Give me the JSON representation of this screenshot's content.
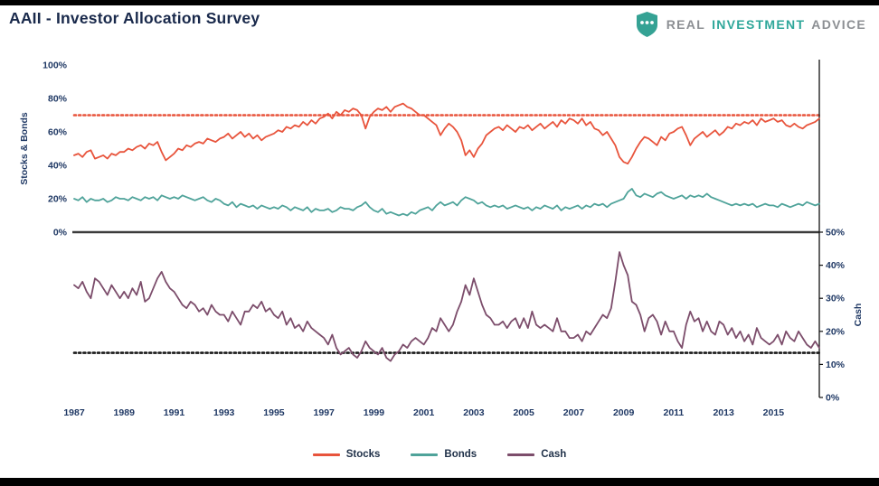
{
  "header": {
    "title": "AAII - Investor Allocation Survey",
    "logo": {
      "icon": "shield-dots-icon",
      "words": [
        "REAL",
        "INVESTMENT",
        "ADVICE"
      ],
      "teal": "#2FA79A",
      "gray": "#8C8F93"
    }
  },
  "chart_data": {
    "type": "line",
    "title": "AAII - Investor Allocation Survey",
    "x_start": 1987,
    "points_per_year": 6,
    "x_tick_labels": [
      "1987",
      "1989",
      "1991",
      "1993",
      "1995",
      "1997",
      "1999",
      "2001",
      "2003",
      "2005",
      "2007",
      "2009",
      "2011",
      "2013",
      "2015"
    ],
    "panels": [
      {
        "name": "stocks_bonds",
        "side": "left",
        "ylabel": "Stocks & Bonds",
        "ylim": [
          0,
          100
        ],
        "yticks": [
          "100%",
          "80%",
          "60%",
          "40%",
          "20%",
          "0%"
        ]
      },
      {
        "name": "cash",
        "side": "right",
        "ylabel": "Cash",
        "ylim": [
          0,
          50
        ],
        "yticks": [
          "50%",
          "40%",
          "30%",
          "20%",
          "10%",
          "0%"
        ]
      }
    ],
    "grid": false,
    "legend_position": "bottom",
    "axis_text_color": "#1F3864",
    "series": [
      {
        "name": "Stocks",
        "panel": "stocks_bonds",
        "color": "#E8543C",
        "values": [
          46,
          47,
          45,
          48,
          49,
          44,
          45,
          46,
          44,
          47,
          46,
          48,
          48,
          50,
          49,
          51,
          52,
          50,
          53,
          52,
          54,
          48,
          43,
          45,
          47,
          50,
          49,
          52,
          51,
          53,
          54,
          53,
          56,
          55,
          54,
          56,
          57,
          59,
          56,
          58,
          60,
          57,
          59,
          56,
          58,
          55,
          57,
          58,
          59,
          61,
          60,
          63,
          62,
          64,
          63,
          66,
          64,
          67,
          65,
          68,
          69,
          71,
          68,
          72,
          70,
          73,
          72,
          74,
          73,
          70,
          62,
          69,
          72,
          74,
          73,
          75,
          72,
          75,
          76,
          77,
          75,
          74,
          72,
          70,
          70,
          68,
          66,
          64,
          58,
          62,
          65,
          63,
          60,
          55,
          46,
          49,
          45,
          50,
          53,
          58,
          60,
          62,
          63,
          61,
          64,
          62,
          60,
          63,
          62,
          64,
          61,
          63,
          65,
          62,
          64,
          66,
          63,
          67,
          65,
          68,
          67,
          65,
          68,
          64,
          66,
          62,
          61,
          58,
          60,
          56,
          52,
          45,
          42,
          41,
          45,
          50,
          54,
          57,
          56,
          54,
          52,
          57,
          55,
          59,
          60,
          62,
          63,
          58,
          52,
          56,
          58,
          60,
          57,
          59,
          61,
          58,
          60,
          63,
          62,
          65,
          64,
          66,
          65,
          67,
          64,
          68,
          66,
          67,
          68,
          66,
          67,
          64,
          63,
          65,
          63,
          62,
          64,
          65,
          66,
          68
        ]
      },
      {
        "name": "Bonds",
        "panel": "stocks_bonds",
        "color": "#4FA39A",
        "values": [
          20,
          19,
          21,
          18,
          20,
          19,
          19,
          20,
          18,
          19,
          21,
          20,
          20,
          19,
          21,
          20,
          19,
          21,
          20,
          21,
          19,
          22,
          21,
          20,
          21,
          20,
          22,
          21,
          20,
          19,
          20,
          21,
          19,
          18,
          20,
          19,
          17,
          16,
          18,
          15,
          17,
          16,
          15,
          16,
          14,
          16,
          15,
          14,
          15,
          14,
          16,
          15,
          13,
          15,
          14,
          13,
          15,
          12,
          14,
          13,
          13,
          14,
          12,
          13,
          15,
          14,
          14,
          13,
          15,
          16,
          18,
          15,
          13,
          12,
          14,
          11,
          12,
          11,
          10,
          11,
          10,
          12,
          11,
          13,
          14,
          15,
          13,
          16,
          18,
          16,
          17,
          18,
          16,
          19,
          21,
          20,
          19,
          17,
          18,
          16,
          15,
          16,
          15,
          16,
          14,
          15,
          16,
          15,
          14,
          15,
          13,
          15,
          14,
          16,
          15,
          14,
          16,
          13,
          15,
          14,
          15,
          16,
          14,
          16,
          15,
          17,
          16,
          17,
          15,
          17,
          18,
          19,
          20,
          24,
          26,
          22,
          21,
          23,
          22,
          21,
          23,
          24,
          22,
          21,
          20,
          21,
          22,
          20,
          22,
          21,
          22,
          21,
          23,
          21,
          20,
          19,
          18,
          17,
          16,
          17,
          16,
          17,
          16,
          17,
          15,
          16,
          17,
          16,
          16,
          15,
          17,
          16,
          15,
          16,
          17,
          16,
          18,
          17,
          16,
          17
        ]
      },
      {
        "name": "Cash",
        "panel": "cash",
        "color": "#7C4D6B",
        "values": [
          34,
          33,
          35,
          32,
          30,
          36,
          35,
          33,
          31,
          34,
          32,
          30,
          32,
          30,
          33,
          31,
          35,
          29,
          30,
          33,
          36,
          38,
          35,
          33,
          32,
          30,
          28,
          27,
          29,
          28,
          26,
          27,
          25,
          28,
          26,
          25,
          25,
          23,
          26,
          24,
          22,
          26,
          26,
          28,
          27,
          29,
          26,
          27,
          25,
          24,
          26,
          22,
          24,
          21,
          22,
          20,
          23,
          21,
          20,
          19,
          18,
          16,
          19,
          15,
          13,
          14,
          15,
          13,
          12,
          14,
          17,
          15,
          14,
          13,
          15,
          12,
          11,
          13,
          14,
          16,
          15,
          17,
          18,
          17,
          16,
          18,
          21,
          20,
          24,
          22,
          20,
          22,
          26,
          29,
          34,
          31,
          36,
          32,
          28,
          25,
          24,
          22,
          22,
          23,
          21,
          23,
          24,
          21,
          24,
          21,
          26,
          22,
          21,
          22,
          21,
          20,
          24,
          20,
          20,
          18,
          18,
          19,
          17,
          20,
          19,
          21,
          23,
          25,
          24,
          27,
          35,
          44,
          40,
          37,
          29,
          28,
          25,
          20,
          24,
          25,
          23,
          19,
          23,
          20,
          20,
          17,
          15,
          22,
          26,
          23,
          24,
          20,
          23,
          20,
          19,
          23,
          22,
          19,
          21,
          18,
          20,
          17,
          19,
          16,
          21,
          18,
          17,
          16,
          17,
          19,
          16,
          20,
          18,
          17,
          20,
          18,
          16,
          15,
          17,
          15
        ]
      }
    ],
    "reference_lines": [
      {
        "panel": "stocks_bonds",
        "value": 70,
        "color": "#E8543C",
        "style": "dotted"
      },
      {
        "panel": "cash",
        "value": 13.5,
        "color": "#1a1a1a",
        "style": "dotted"
      }
    ],
    "legend": [
      "Stocks",
      "Bonds",
      "Cash"
    ]
  }
}
